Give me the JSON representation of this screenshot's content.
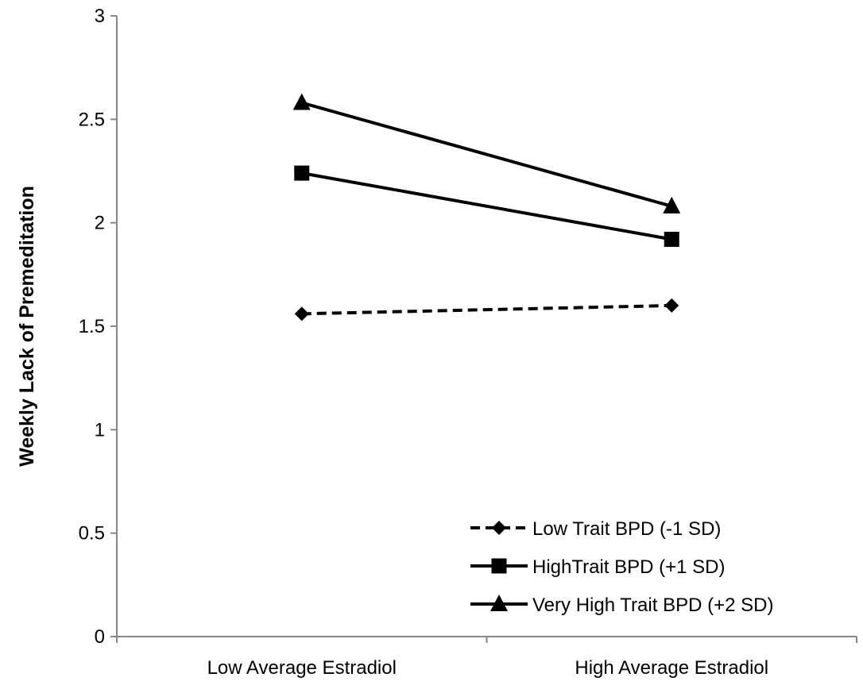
{
  "chart_data": {
    "type": "line",
    "ylabel": "Weekly Lack of Premeditation",
    "xlabel": "",
    "categories": [
      "Low Average Estradiol",
      "High Average Estradiol"
    ],
    "ylim": [
      0,
      3
    ],
    "yticks": [
      "0",
      "0.5",
      "1",
      "1.5",
      "2",
      "2.5",
      "3"
    ],
    "grid": false,
    "legend_position": "bottom-right",
    "series": [
      {
        "name": "Low Trait BPD (-1 SD)",
        "values": [
          1.56,
          1.6
        ],
        "marker": "diamond",
        "dash": "dashed",
        "color": "#000000"
      },
      {
        "name": "HighTrait BPD (+1 SD)",
        "values": [
          2.24,
          1.92
        ],
        "marker": "square",
        "dash": "solid",
        "color": "#000000"
      },
      {
        "name": "Very High Trait BPD (+2 SD)",
        "values": [
          2.58,
          2.08
        ],
        "marker": "triangle",
        "dash": "solid",
        "color": "#000000"
      }
    ]
  }
}
